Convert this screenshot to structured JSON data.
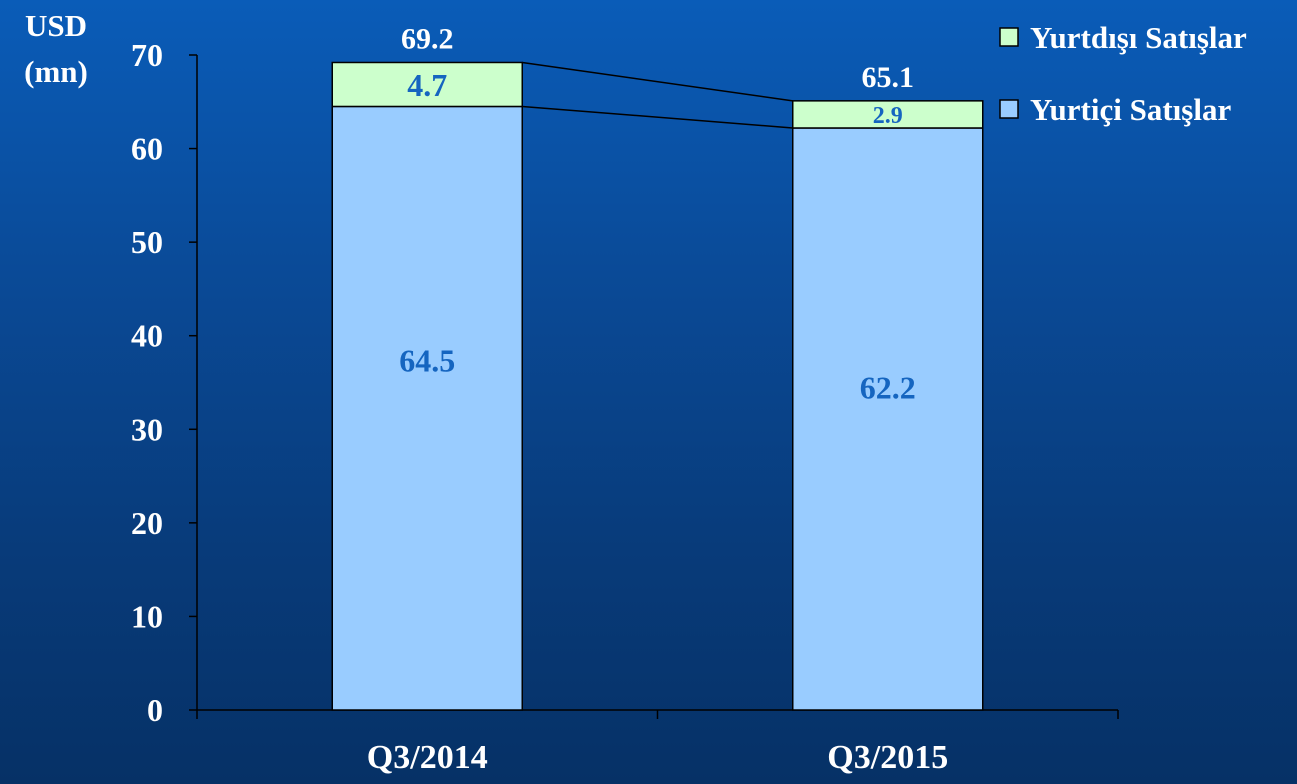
{
  "chart_data": {
    "type": "bar",
    "stacked": true,
    "categories": [
      "Q3/2014",
      "Q3/2015"
    ],
    "series": [
      {
        "name": "Yurtiçi Satışlar",
        "values": [
          64.5,
          62.2
        ],
        "labels": [
          "64.5",
          "62.2"
        ],
        "color": "#99ccff"
      },
      {
        "name": "Yurtdışı Satışlar",
        "values": [
          4.7,
          2.9
        ],
        "labels": [
          "4.7",
          "2.9"
        ],
        "color": "#ccffcc"
      }
    ],
    "totals": [
      "69.2",
      "65.1"
    ],
    "ylabel_lines": [
      "USD",
      "(mn)"
    ],
    "yticks": [
      "0",
      "10",
      "20",
      "30",
      "40",
      "50",
      "60",
      "70"
    ],
    "ylim": [
      0,
      70
    ],
    "grid": false,
    "legend_order": [
      1,
      0
    ],
    "legend_position": "top-right",
    "series_lines": true
  }
}
